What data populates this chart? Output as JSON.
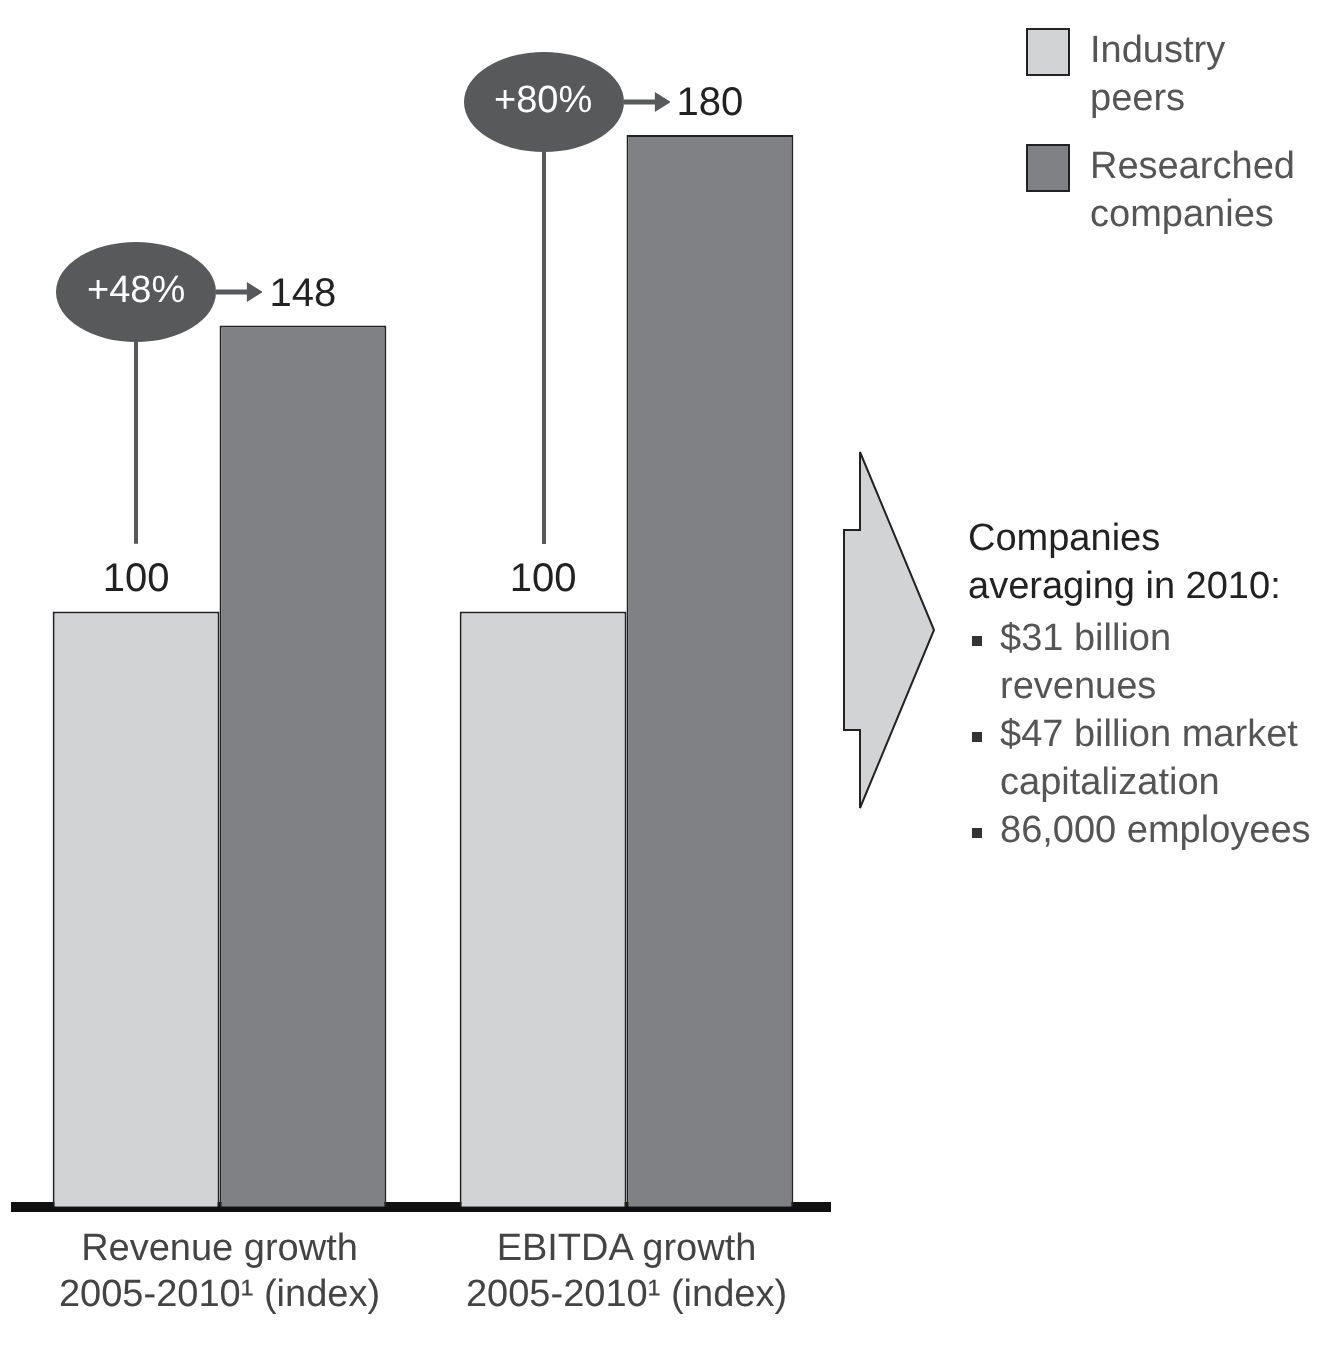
{
  "chart_data": {
    "type": "bar",
    "categories": [
      "Revenue growth 2005-2010¹ (index)",
      "EBITDA growth 2005-2010¹ (index)"
    ],
    "series": [
      {
        "name": "Industry peers",
        "color": "#d2d3d5",
        "values": [
          100,
          100
        ]
      },
      {
        "name": "Researched companies",
        "color": "#808184",
        "values": [
          148,
          180
        ]
      }
    ],
    "data_labels": true,
    "legend": "top right",
    "grid": false,
    "annotations": [
      {
        "text": "+48%",
        "x": "Revenue growth 2005-2010¹ (index)",
        "y": 148
      },
      {
        "text": "+80%",
        "x": "EBITDA growth 2005-2010¹ (index)",
        "y": 180
      },
      "Companies averaging in 2010:",
      "$31 billion revenues",
      "$47 billion market capitalization",
      "86,000 employees"
    ]
  }
}
